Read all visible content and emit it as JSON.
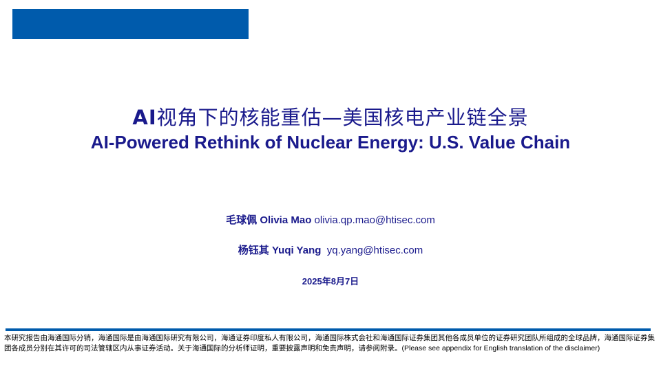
{
  "colors": {
    "brand_blue": "#005bac",
    "title_navy": "#1a1a8c"
  },
  "title": {
    "cn_prefix": "AI",
    "cn": "视角下的核能重估—美国核电产业链全景",
    "en": "AI-Powered Rethink of Nuclear Energy: U.S. Value Chain"
  },
  "authors": [
    {
      "cn_name": "毛球佩",
      "en_name": "Olivia Mao",
      "email": "olivia.qp.mao@htisec.com"
    },
    {
      "cn_name": "杨钰其",
      "en_name": "Yuqi Yang",
      "email": "yq.yang@htisec.com"
    }
  ],
  "date": "2025年8月7日",
  "disclaimer": {
    "cn": "本研究报告由海通国际分销，海通国际是由海通国际研究有限公司，海通证券印度私人有限公司，海通国际株式会社和海通国际证券集团其他各成员单位的证券研究团队所组成的全球品牌，海通国际证券集团各成员分别在其许可的司法管辖区内从事证券活动。关于海通国际的分析师证明，重要披露声明和免责声明，请参阅附录。",
    "en": "(Please see appendix for English translation of the disclaimer)"
  }
}
